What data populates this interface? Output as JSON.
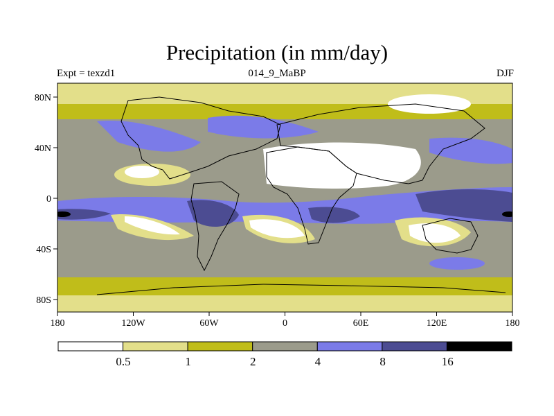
{
  "title": "Precipitation (in mm/day)",
  "experiment_label": "Expt = texzd1",
  "run_label": "014_9_MaBP",
  "season_label": "DJF",
  "axes": {
    "lon_ticks": [
      "180",
      "120W",
      "60W",
      "0",
      "60E",
      "120E",
      "180"
    ],
    "lat_ticks": [
      "80N",
      "40N",
      "0",
      "40S",
      "80S"
    ]
  },
  "colorbar": {
    "levels": [
      "0.5",
      "1",
      "2",
      "4",
      "8",
      "16"
    ],
    "colors": [
      "#ffffff",
      "#e3df8a",
      "#c0bd1a",
      "#9b9b8b",
      "#7b7be8",
      "#4c4c92",
      "#000000"
    ]
  }
}
